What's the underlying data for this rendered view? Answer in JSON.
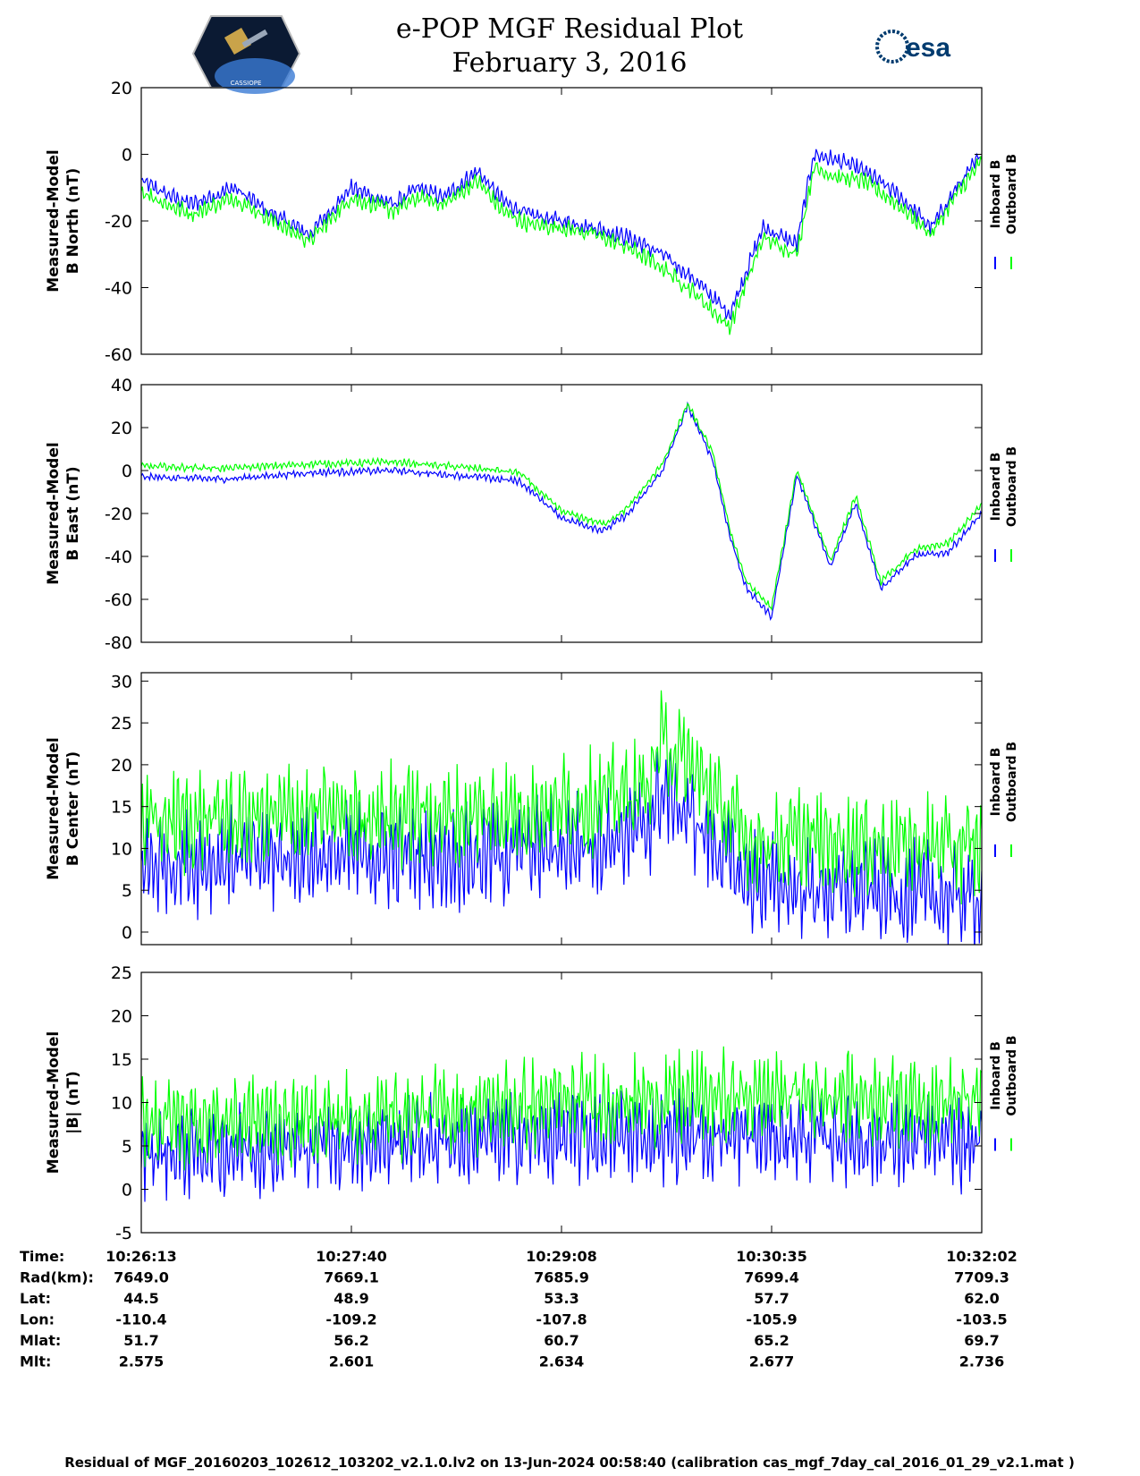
{
  "header": {
    "title_line1": "e-POP MGF Residual Plot",
    "title_line2": "February 3, 2016",
    "logo_left": "CASSIOPE",
    "logo_right": "esa"
  },
  "colors": {
    "inboard": "#0000ff",
    "outboard": "#00ff00",
    "axis": "#000000"
  },
  "chart_data": [
    {
      "type": "line",
      "ylabel_line1": "Measured-Model",
      "ylabel_line2": "B North (nT)",
      "ylim": [
        -60,
        20
      ],
      "yticks": [
        20,
        0,
        -20,
        -40,
        -60
      ],
      "ytick_labels": [
        "20",
        "0",
        "-20",
        "-40",
        "-60"
      ],
      "legend": [
        "Inboard B",
        "Outboard B"
      ],
      "noise": 3.0,
      "series": [
        {
          "name": "Inboard B",
          "x": [
            0,
            0.03,
            0.06,
            0.11,
            0.15,
            0.2,
            0.25,
            0.3,
            0.33,
            0.36,
            0.4,
            0.43,
            0.46,
            0.5,
            0.54,
            0.58,
            0.62,
            0.66,
            0.7,
            0.74,
            0.78,
            0.8,
            0.83,
            0.86,
            0.9,
            0.94,
            0.97,
            1.0
          ],
          "y": [
            -8,
            -12,
            -15,
            -10,
            -17,
            -24,
            -10,
            -15,
            -10,
            -13,
            -5,
            -14,
            -18,
            -20,
            -22,
            -25,
            -30,
            -38,
            -48,
            -22,
            -27,
            0,
            -2,
            -5,
            -12,
            -22,
            -10,
            0
          ]
        },
        {
          "name": "Outboard B",
          "x": [
            0,
            0.03,
            0.06,
            0.11,
            0.15,
            0.2,
            0.25,
            0.3,
            0.33,
            0.36,
            0.4,
            0.43,
            0.46,
            0.5,
            0.54,
            0.58,
            0.62,
            0.66,
            0.7,
            0.74,
            0.78,
            0.8,
            0.83,
            0.86,
            0.9,
            0.94,
            0.97,
            1.0
          ],
          "y": [
            -11,
            -15,
            -18,
            -13,
            -19,
            -26,
            -13,
            -17,
            -13,
            -15,
            -8,
            -17,
            -21,
            -22,
            -24,
            -28,
            -34,
            -42,
            -52,
            -25,
            -30,
            -4,
            -7,
            -8,
            -15,
            -24,
            -12,
            -2
          ]
        }
      ]
    },
    {
      "type": "line",
      "ylabel_line1": "Measured-Model",
      "ylabel_line2": "B East (nT)",
      "ylim": [
        -80,
        40
      ],
      "yticks": [
        40,
        20,
        0,
        -20,
        -40,
        -60,
        -80
      ],
      "ytick_labels": [
        "40",
        "20",
        "0",
        "-20",
        "-40",
        "-60",
        "-80"
      ],
      "legend": [
        "Inboard B",
        "Outboard B"
      ],
      "noise": 2.0,
      "series": [
        {
          "name": "Inboard B",
          "x": [
            0,
            0.1,
            0.2,
            0.3,
            0.4,
            0.45,
            0.48,
            0.5,
            0.55,
            0.58,
            0.62,
            0.65,
            0.68,
            0.7,
            0.72,
            0.75,
            0.78,
            0.82,
            0.85,
            0.88,
            0.92,
            0.96,
            1.0
          ],
          "y": [
            -3,
            -4,
            -1,
            0,
            -3,
            -5,
            -15,
            -22,
            -28,
            -20,
            0,
            30,
            5,
            -30,
            -55,
            -68,
            -2,
            -45,
            -15,
            -55,
            -40,
            -38,
            -20
          ]
        },
        {
          "name": "Outboard B",
          "x": [
            0,
            0.1,
            0.2,
            0.3,
            0.4,
            0.45,
            0.48,
            0.5,
            0.55,
            0.58,
            0.62,
            0.65,
            0.68,
            0.7,
            0.72,
            0.75,
            0.78,
            0.82,
            0.85,
            0.88,
            0.92,
            0.96,
            1.0
          ],
          "y": [
            2,
            1,
            3,
            4,
            1,
            -1,
            -12,
            -19,
            -25,
            -17,
            3,
            31,
            8,
            -27,
            -52,
            -64,
            0,
            -42,
            -12,
            -52,
            -37,
            -34,
            -16
          ]
        }
      ]
    },
    {
      "type": "line",
      "ylabel_line1": "Measured-Model",
      "ylabel_line2": "B Center (nT)",
      "ylim": [
        -1.5,
        31
      ],
      "yticks": [
        30,
        25,
        20,
        15,
        10,
        5,
        0
      ],
      "ytick_labels": [
        "30",
        "25",
        "20",
        "15",
        "10",
        "5",
        "0"
      ],
      "legend": [
        "Inboard B",
        "Outboard B"
      ],
      "noise": 7.0,
      "series": [
        {
          "name": "Inboard B",
          "x": [
            0,
            0.2,
            0.4,
            0.5,
            0.6,
            0.62,
            0.66,
            0.72,
            0.8,
            1.0
          ],
          "y": [
            8,
            9,
            9,
            10,
            12,
            17,
            13,
            6,
            5,
            4
          ]
        },
        {
          "name": "Outboard B",
          "x": [
            0,
            0.2,
            0.4,
            0.5,
            0.6,
            0.62,
            0.66,
            0.72,
            0.8,
            1.0
          ],
          "y": [
            13,
            14,
            14,
            15,
            17,
            23,
            19,
            11,
            11,
            10
          ]
        }
      ]
    },
    {
      "type": "line",
      "ylabel_line1": "Measured-Model",
      "ylabel_line2": "|B| (nT)",
      "ylim": [
        -5,
        25
      ],
      "yticks": [
        25,
        20,
        15,
        10,
        5,
        0,
        -5
      ],
      "ytick_labels": [
        "25",
        "20",
        "15",
        "10",
        "5",
        "0",
        "-5"
      ],
      "legend": [
        "Inboard B",
        "Outboard B"
      ],
      "noise": 6.0,
      "series": [
        {
          "name": "Inboard B",
          "x": [
            0,
            0.2,
            0.5,
            0.8,
            1.0
          ],
          "y": [
            4,
            5,
            6,
            6,
            5
          ]
        },
        {
          "name": "Outboard B",
          "x": [
            0,
            0.2,
            0.5,
            0.8,
            1.0
          ],
          "y": [
            8,
            8,
            10,
            11,
            10
          ]
        }
      ]
    }
  ],
  "table": {
    "row_labels": [
      "Time:",
      "Rad(km):",
      "Lat:",
      "Lon:",
      "Mlat:",
      "Mlt:"
    ],
    "columns": [
      [
        "10:26:13",
        "7649.0",
        "44.5",
        "-110.4",
        "51.7",
        "2.575"
      ],
      [
        "10:27:40",
        "7669.1",
        "48.9",
        "-109.2",
        "56.2",
        "2.601"
      ],
      [
        "10:29:08",
        "7685.9",
        "53.3",
        "-107.8",
        "60.7",
        "2.634"
      ],
      [
        "10:30:35",
        "7699.4",
        "57.7",
        "-105.9",
        "65.2",
        "2.677"
      ],
      [
        "10:32:02",
        "7709.3",
        "62.0",
        "-103.5",
        "69.7",
        "2.736"
      ]
    ]
  },
  "footer": "Residual of MGF_20160203_102612_103202_v2.1.0.lv2 on 13-Jun-2024 00:58:40 (calibration cas_mgf_7day_cal_2016_01_29_v2.1.mat )"
}
